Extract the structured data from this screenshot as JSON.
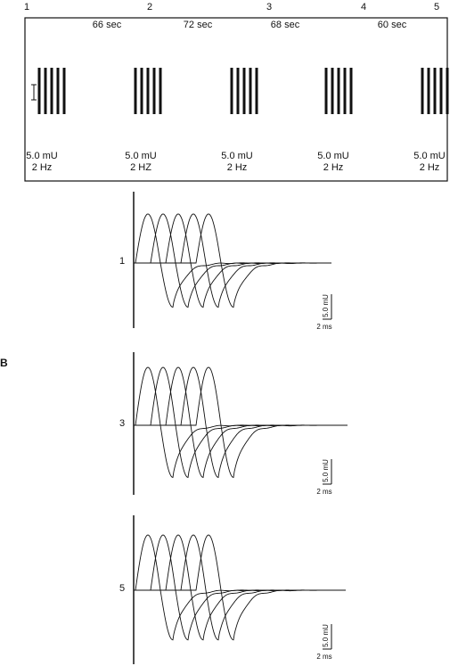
{
  "panel_a": {
    "columns": [
      "1",
      "2",
      "3",
      "4",
      "5"
    ],
    "intervals": [
      "66 sec",
      "72 sec",
      "68 sec",
      "60 sec"
    ],
    "stimuli": [
      {
        "intensity": "5.0 mU",
        "frequency": "2 Hz"
      },
      {
        "intensity": "5.0 mU",
        "frequency": "2 HZ"
      },
      {
        "intensity": "5.0 mU",
        "frequency": "2 Hz"
      },
      {
        "intensity": "5.0 mU",
        "frequency": "2 Hz"
      },
      {
        "intensity": "5.0 mU",
        "frequency": "2 Hz"
      }
    ]
  },
  "panel_b": {
    "label": "B",
    "traces": [
      {
        "label": "1",
        "scale_amplitude": "5.0 mU",
        "scale_time": "2 ms"
      },
      {
        "label": "3",
        "scale_amplitude": "5.0 mU",
        "scale_time": "2 ms"
      },
      {
        "label": "5",
        "scale_amplitude": "5.0 mU",
        "scale_time": "2 ms"
      }
    ]
  }
}
